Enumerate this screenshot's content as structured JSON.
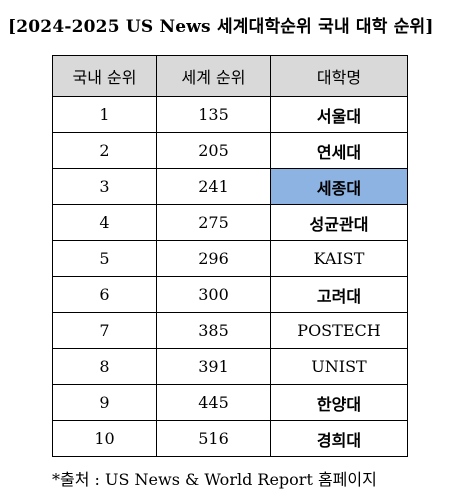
{
  "title": "[2024-2025 US News 세계대학순위 국내 대학 순위]",
  "table": {
    "headers": [
      "국내 순위",
      "세계 순위",
      "대학명"
    ],
    "rows": [
      {
        "domestic_rank": "1",
        "world_rank": "135",
        "university": "서울대"
      },
      {
        "domestic_rank": "2",
        "world_rank": "205",
        "university": "연세대"
      },
      {
        "domestic_rank": "3",
        "world_rank": "241",
        "university": "세종대"
      },
      {
        "domestic_rank": "4",
        "world_rank": "275",
        "university": "성균관대"
      },
      {
        "domestic_rank": "5",
        "world_rank": "296",
        "university": "KAIST"
      },
      {
        "domestic_rank": "6",
        "world_rank": "300",
        "university": "고려대"
      },
      {
        "domestic_rank": "7",
        "world_rank": "385",
        "university": "POSTECH"
      },
      {
        "domestic_rank": "8",
        "world_rank": "391",
        "university": "UNIST"
      },
      {
        "domestic_rank": "9",
        "world_rank": "445",
        "university": "한양대"
      },
      {
        "domestic_rank": "10",
        "world_rank": "516",
        "university": "경희대"
      }
    ],
    "highlight_color": "#8db3e2",
    "header_color": "#d9d9d9"
  },
  "footnote": "*출처 : US News & World Report 홈페이지"
}
